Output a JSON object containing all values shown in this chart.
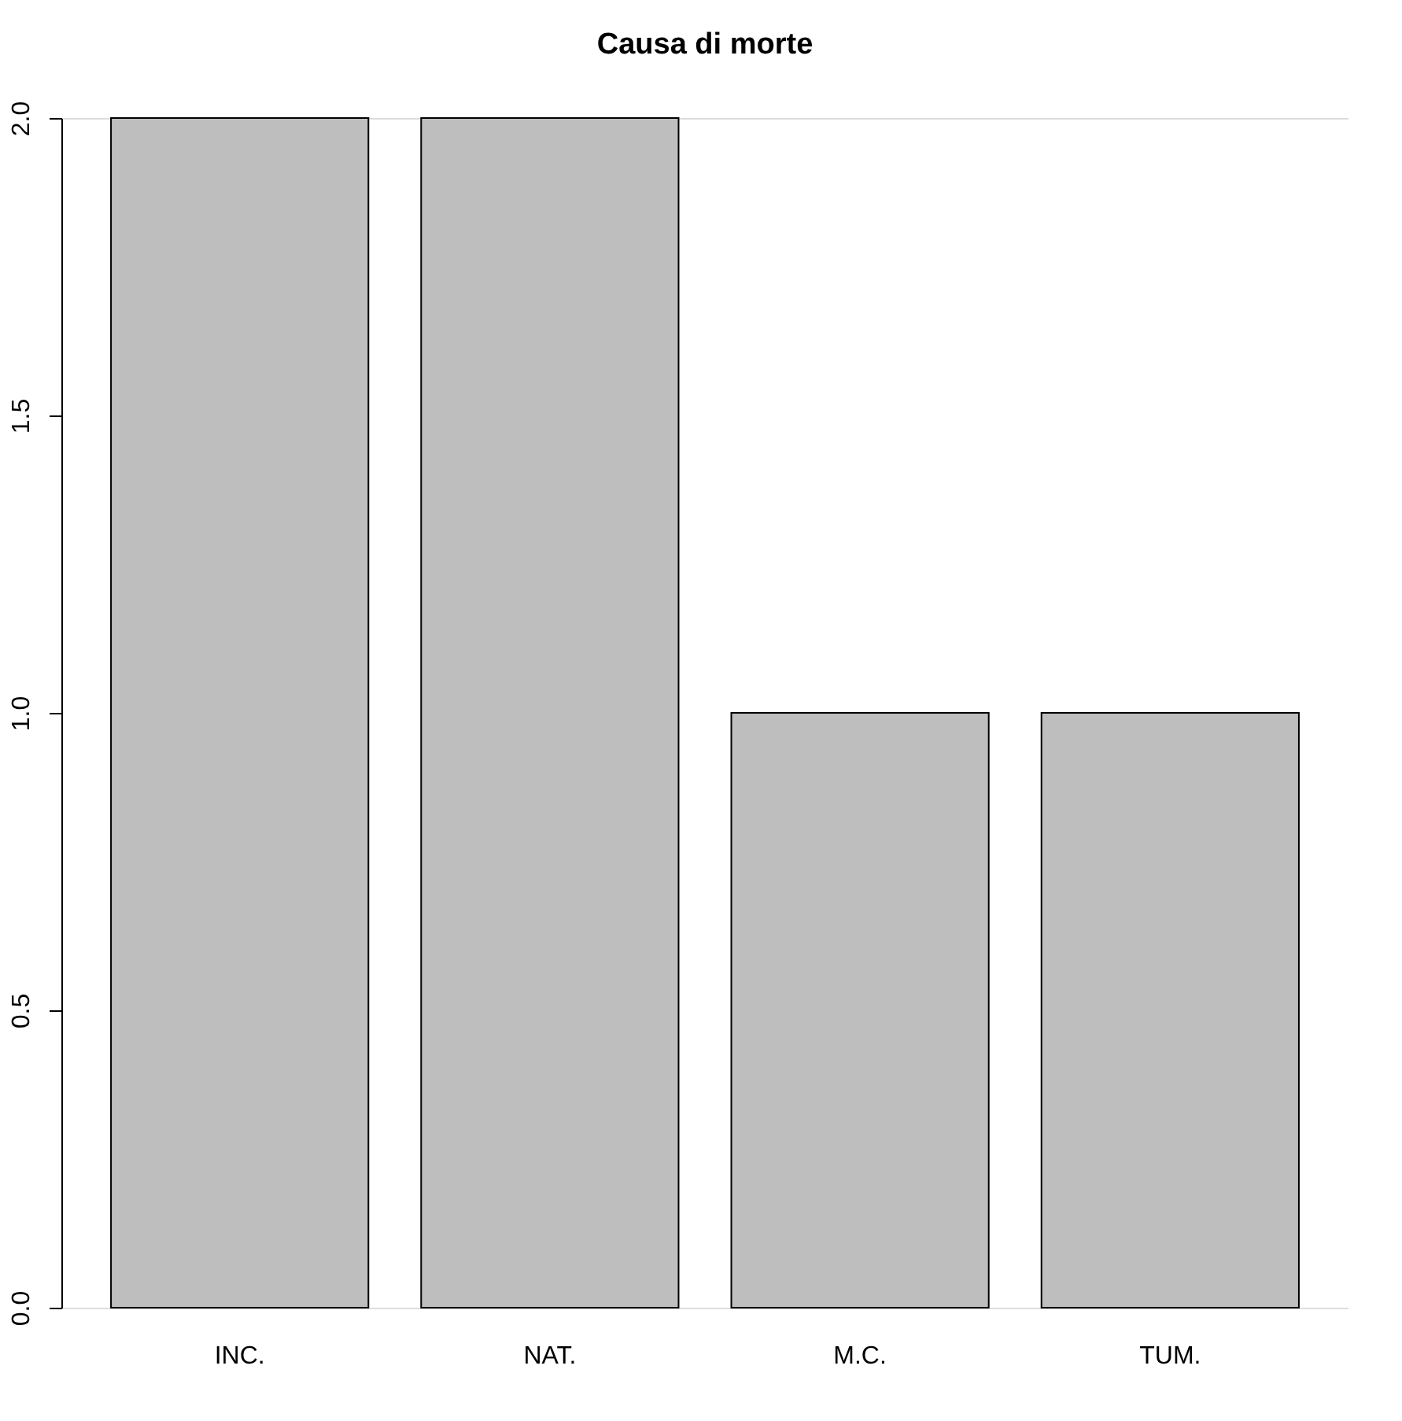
{
  "chart_data": {
    "type": "bar",
    "title": "Causa di morte",
    "categories": [
      "INC.",
      "NAT.",
      "M.C.",
      "TUM."
    ],
    "values": [
      2,
      2,
      1,
      1
    ],
    "color": "#bebebe",
    "ylim": [
      0,
      2
    ],
    "yticks": [
      {
        "value": 0,
        "label": "0.0"
      },
      0.5,
      {
        "value": 1,
        "label": "1.0"
      },
      1.5,
      {
        "value": 2,
        "label": "2.0"
      }
    ],
    "grid": false
  }
}
